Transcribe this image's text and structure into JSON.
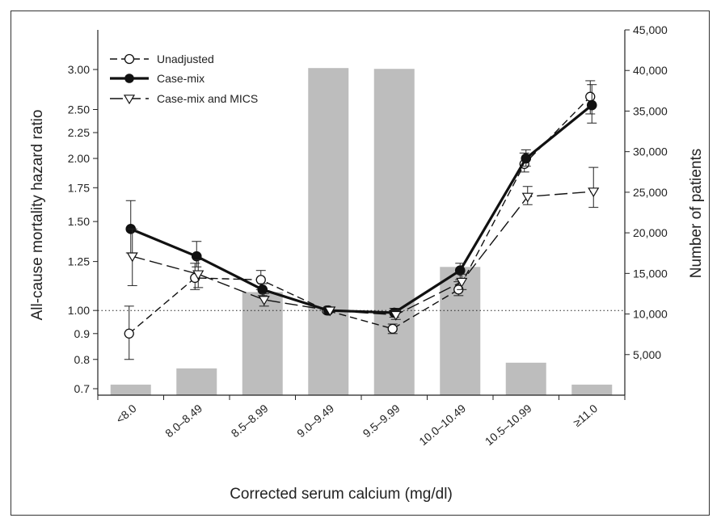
{
  "chart_data": {
    "type": "bar+line",
    "title": "",
    "xlabel": "Corrected serum calcium (mg/dl)",
    "ylabel_left": "All-cause mortality hazard ratio",
    "ylabel_right": "Number of patients",
    "left_axis_scale": "log",
    "left_ticks": [
      "0.7",
      "0.8",
      "0.9",
      "1.00",
      "1.25",
      "1.50",
      "1.75",
      "2.00",
      "2.25",
      "2.50",
      "3.00"
    ],
    "right_ticks": [
      "5,000",
      "10,000",
      "15,000",
      "20,000",
      "25,000",
      "30,000",
      "35,000",
      "40,000",
      "45,000"
    ],
    "ylim_left": [
      0.66,
      3.7
    ],
    "ylim_right": [
      0,
      45000
    ],
    "reference_line": 1.0,
    "categories": [
      "<8.0",
      "8.0–8.49",
      "8.5–8.99",
      "9.0–9.49",
      "9.5–9.99",
      "10.0–10.49",
      "10.5–10.99",
      "≥11.0"
    ],
    "bars": {
      "name": "Number of patients",
      "color": "#bdbdbd",
      "values": [
        1300,
        3300,
        12700,
        40300,
        40200,
        15800,
        4000,
        1300
      ]
    },
    "series": [
      {
        "name": "Unadjusted",
        "marker": "circle-open",
        "line": "dashed",
        "values": [
          0.9,
          1.16,
          1.15,
          1.0,
          0.92,
          1.1,
          1.95,
          2.65
        ],
        "ci_low": [
          0.8,
          1.1,
          1.1,
          null,
          0.9,
          1.07,
          1.88,
          2.45
        ],
        "ci_high": [
          1.02,
          1.24,
          1.2,
          null,
          0.94,
          1.14,
          2.05,
          2.85
        ]
      },
      {
        "name": "Case-mix",
        "marker": "circle-filled",
        "line": "solid",
        "values": [
          1.45,
          1.28,
          1.1,
          1.0,
          0.99,
          1.2,
          2.0,
          2.55
        ],
        "ci_low": [
          1.3,
          1.22,
          1.07,
          null,
          0.97,
          1.15,
          1.93,
          2.35
        ],
        "ci_high": [
          1.65,
          1.37,
          1.13,
          null,
          1.01,
          1.24,
          2.08,
          2.8
        ]
      },
      {
        "name": "Case-mix and MICS",
        "marker": "triangle-open",
        "line": "long-dashed",
        "values": [
          1.28,
          1.18,
          1.05,
          1.0,
          0.98,
          1.14,
          1.68,
          1.72
        ],
        "ci_low": [
          1.12,
          1.11,
          1.02,
          null,
          0.96,
          1.1,
          1.62,
          1.6
        ],
        "ci_high": [
          1.45,
          1.26,
          1.08,
          null,
          1.0,
          1.18,
          1.76,
          1.92
        ]
      }
    ]
  }
}
